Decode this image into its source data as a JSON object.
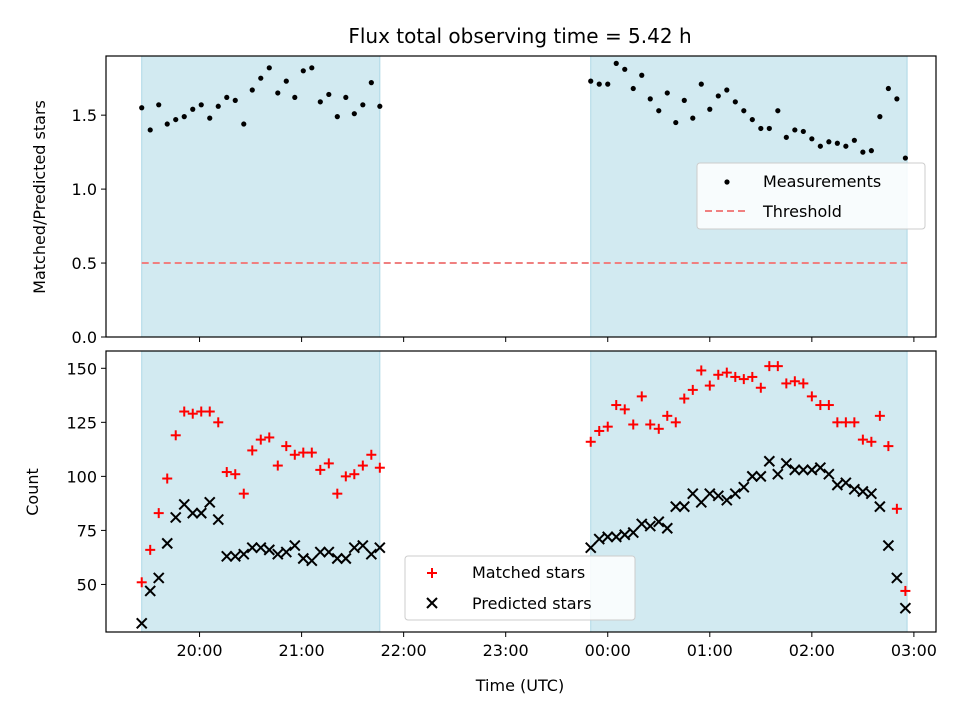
{
  "chart_data": [
    {
      "type": "scatter",
      "title": "Flux total observing time = 5.42 h",
      "ylabel": "Matched/Predicted stars",
      "ylim": [
        0,
        1.9
      ],
      "y_ticks": [
        0.0,
        0.5,
        1.0,
        1.5
      ],
      "y_tick_labels": [
        "0.0",
        "0.5",
        "1.0",
        "1.5"
      ],
      "legend": {
        "placement": "center-right",
        "entries": [
          "Measurements",
          "Threshold"
        ]
      },
      "threshold": {
        "name": "Threshold",
        "value": 0.5,
        "color": "#f08080",
        "style": "dashed"
      },
      "shaded_intervals": [
        [
          "19:26",
          "21:46"
        ],
        [
          "23:50",
          "02:56"
        ]
      ],
      "shade_color": "#add8e6",
      "series": [
        {
          "name": "Measurements",
          "color": "#000000",
          "points": [
            [
              "19:26",
              1.55
            ],
            [
              "19:31",
              1.4
            ],
            [
              "19:36",
              1.57
            ],
            [
              "19:41",
              1.44
            ],
            [
              "19:46",
              1.47
            ],
            [
              "19:51",
              1.49
            ],
            [
              "19:56",
              1.54
            ],
            [
              "20:01",
              1.57
            ],
            [
              "20:06",
              1.48
            ],
            [
              "20:11",
              1.56
            ],
            [
              "20:16",
              1.62
            ],
            [
              "20:21",
              1.6
            ],
            [
              "20:26",
              1.44
            ],
            [
              "20:31",
              1.67
            ],
            [
              "20:36",
              1.75
            ],
            [
              "20:41",
              1.82
            ],
            [
              "20:46",
              1.65
            ],
            [
              "20:51",
              1.73
            ],
            [
              "20:56",
              1.62
            ],
            [
              "21:01",
              1.8
            ],
            [
              "21:06",
              1.82
            ],
            [
              "21:11",
              1.59
            ],
            [
              "21:16",
              1.64
            ],
            [
              "21:21",
              1.49
            ],
            [
              "21:26",
              1.62
            ],
            [
              "21:31",
              1.51
            ],
            [
              "21:36",
              1.57
            ],
            [
              "21:41",
              1.72
            ],
            [
              "21:46",
              1.56
            ],
            [
              "23:50",
              1.73
            ],
            [
              "23:55",
              1.71
            ],
            [
              "00:00",
              1.71
            ],
            [
              "00:05",
              1.85
            ],
            [
              "00:10",
              1.81
            ],
            [
              "00:15",
              1.68
            ],
            [
              "00:20",
              1.77
            ],
            [
              "00:25",
              1.61
            ],
            [
              "00:30",
              1.53
            ],
            [
              "00:35",
              1.65
            ],
            [
              "00:40",
              1.45
            ],
            [
              "00:45",
              1.6
            ],
            [
              "00:50",
              1.48
            ],
            [
              "00:55",
              1.71
            ],
            [
              "01:00",
              1.54
            ],
            [
              "01:05",
              1.63
            ],
            [
              "01:10",
              1.67
            ],
            [
              "01:15",
              1.59
            ],
            [
              "01:20",
              1.53
            ],
            [
              "01:25",
              1.47
            ],
            [
              "01:30",
              1.41
            ],
            [
              "01:35",
              1.41
            ],
            [
              "01:40",
              1.53
            ],
            [
              "01:45",
              1.35
            ],
            [
              "01:50",
              1.4
            ],
            [
              "01:55",
              1.39
            ],
            [
              "02:00",
              1.34
            ],
            [
              "02:05",
              1.29
            ],
            [
              "02:10",
              1.32
            ],
            [
              "02:15",
              1.31
            ],
            [
              "02:20",
              1.29
            ],
            [
              "02:25",
              1.33
            ],
            [
              "02:30",
              1.25
            ],
            [
              "02:35",
              1.26
            ],
            [
              "02:40",
              1.49
            ],
            [
              "02:45",
              1.68
            ],
            [
              "02:50",
              1.61
            ],
            [
              "02:55",
              1.21
            ]
          ]
        }
      ]
    },
    {
      "type": "scatter",
      "xlabel": "Time (UTC)",
      "ylabel": "Count",
      "ylim": [
        28,
        158
      ],
      "y_ticks": [
        50,
        75,
        100,
        125,
        150
      ],
      "y_tick_labels": [
        "50",
        "75",
        "100",
        "125",
        "150"
      ],
      "x_ticks": [
        "20:00",
        "21:00",
        "22:00",
        "23:00",
        "00:00",
        "01:00",
        "02:00",
        "03:00"
      ],
      "legend": {
        "placement": "lower-center",
        "entries": [
          "Matched stars",
          "Predicted stars"
        ]
      },
      "shaded_intervals": [
        [
          "19:26",
          "21:46"
        ],
        [
          "23:50",
          "02:56"
        ]
      ],
      "shade_color": "#add8e6",
      "series": [
        {
          "name": "Matched stars",
          "marker": "plus",
          "color": "#ff0000",
          "points": [
            [
              "19:26",
              51
            ],
            [
              "19:31",
              66
            ],
            [
              "19:36",
              83
            ],
            [
              "19:41",
              99
            ],
            [
              "19:46",
              119
            ],
            [
              "19:51",
              130
            ],
            [
              "19:56",
              129
            ],
            [
              "20:01",
              130
            ],
            [
              "20:06",
              130
            ],
            [
              "20:11",
              125
            ],
            [
              "20:16",
              102
            ],
            [
              "20:21",
              101
            ],
            [
              "20:26",
              92
            ],
            [
              "20:31",
              112
            ],
            [
              "20:36",
              117
            ],
            [
              "20:41",
              118
            ],
            [
              "20:46",
              105
            ],
            [
              "20:51",
              114
            ],
            [
              "20:56",
              110
            ],
            [
              "21:01",
              111
            ],
            [
              "21:06",
              111
            ],
            [
              "21:11",
              103
            ],
            [
              "21:16",
              106
            ],
            [
              "21:21",
              92
            ],
            [
              "21:26",
              100
            ],
            [
              "21:31",
              101
            ],
            [
              "21:36",
              105
            ],
            [
              "21:41",
              110
            ],
            [
              "21:46",
              104
            ],
            [
              "23:50",
              116
            ],
            [
              "23:55",
              121
            ],
            [
              "00:00",
              123
            ],
            [
              "00:05",
              133
            ],
            [
              "00:10",
              131
            ],
            [
              "00:15",
              124
            ],
            [
              "00:20",
              137
            ],
            [
              "00:25",
              124
            ],
            [
              "00:30",
              122
            ],
            [
              "00:35",
              128
            ],
            [
              "00:40",
              125
            ],
            [
              "00:45",
              136
            ],
            [
              "00:50",
              140
            ],
            [
              "00:55",
              149
            ],
            [
              "01:00",
              142
            ],
            [
              "01:05",
              147
            ],
            [
              "01:10",
              148
            ],
            [
              "01:15",
              146
            ],
            [
              "01:20",
              145
            ],
            [
              "01:25",
              146
            ],
            [
              "01:30",
              141
            ],
            [
              "01:35",
              151
            ],
            [
              "01:40",
              151
            ],
            [
              "01:45",
              143
            ],
            [
              "01:50",
              144
            ],
            [
              "01:55",
              143
            ],
            [
              "02:00",
              137
            ],
            [
              "02:05",
              133
            ],
            [
              "02:10",
              133
            ],
            [
              "02:15",
              125
            ],
            [
              "02:20",
              125
            ],
            [
              "02:25",
              125
            ],
            [
              "02:30",
              117
            ],
            [
              "02:35",
              116
            ],
            [
              "02:40",
              128
            ],
            [
              "02:45",
              114
            ],
            [
              "02:50",
              85
            ],
            [
              "02:55",
              47
            ]
          ]
        },
        {
          "name": "Predicted stars",
          "marker": "x",
          "color": "#000000",
          "points": [
            [
              "19:26",
              32
            ],
            [
              "19:31",
              47
            ],
            [
              "19:36",
              53
            ],
            [
              "19:41",
              69
            ],
            [
              "19:46",
              81
            ],
            [
              "19:51",
              87
            ],
            [
              "19:56",
              83
            ],
            [
              "20:01",
              83
            ],
            [
              "20:06",
              88
            ],
            [
              "20:11",
              80
            ],
            [
              "20:16",
              63
            ],
            [
              "20:21",
              63
            ],
            [
              "20:26",
              64
            ],
            [
              "20:31",
              67
            ],
            [
              "20:36",
              67
            ],
            [
              "20:41",
              66
            ],
            [
              "20:46",
              64
            ],
            [
              "20:51",
              65
            ],
            [
              "20:56",
              68
            ],
            [
              "21:01",
              62
            ],
            [
              "21:06",
              61
            ],
            [
              "21:11",
              65
            ],
            [
              "21:16",
              65
            ],
            [
              "21:21",
              62
            ],
            [
              "21:26",
              62
            ],
            [
              "21:31",
              67
            ],
            [
              "21:36",
              68
            ],
            [
              "21:41",
              64
            ],
            [
              "21:46",
              67
            ],
            [
              "23:50",
              67
            ],
            [
              "23:55",
              71
            ],
            [
              "00:00",
              72
            ],
            [
              "00:05",
              72
            ],
            [
              "00:10",
              73
            ],
            [
              "00:15",
              74
            ],
            [
              "00:20",
              78
            ],
            [
              "00:25",
              77
            ],
            [
              "00:30",
              79
            ],
            [
              "00:35",
              76
            ],
            [
              "00:40",
              86
            ],
            [
              "00:45",
              86
            ],
            [
              "00:50",
              92
            ],
            [
              "00:55",
              88
            ],
            [
              "01:00",
              92
            ],
            [
              "01:05",
              91
            ],
            [
              "01:10",
              89
            ],
            [
              "01:15",
              92
            ],
            [
              "01:20",
              95
            ],
            [
              "01:25",
              100
            ],
            [
              "01:30",
              100
            ],
            [
              "01:35",
              107
            ],
            [
              "01:40",
              101
            ],
            [
              "01:45",
              106
            ],
            [
              "01:50",
              103
            ],
            [
              "01:55",
              103
            ],
            [
              "02:00",
              103
            ],
            [
              "02:05",
              104
            ],
            [
              "02:10",
              101
            ],
            [
              "02:15",
              96
            ],
            [
              "02:20",
              97
            ],
            [
              "02:25",
              94
            ],
            [
              "02:30",
              93
            ],
            [
              "02:35",
              92
            ],
            [
              "02:40",
              86
            ],
            [
              "02:45",
              68
            ],
            [
              "02:50",
              53
            ],
            [
              "02:55",
              39
            ]
          ]
        }
      ]
    }
  ]
}
